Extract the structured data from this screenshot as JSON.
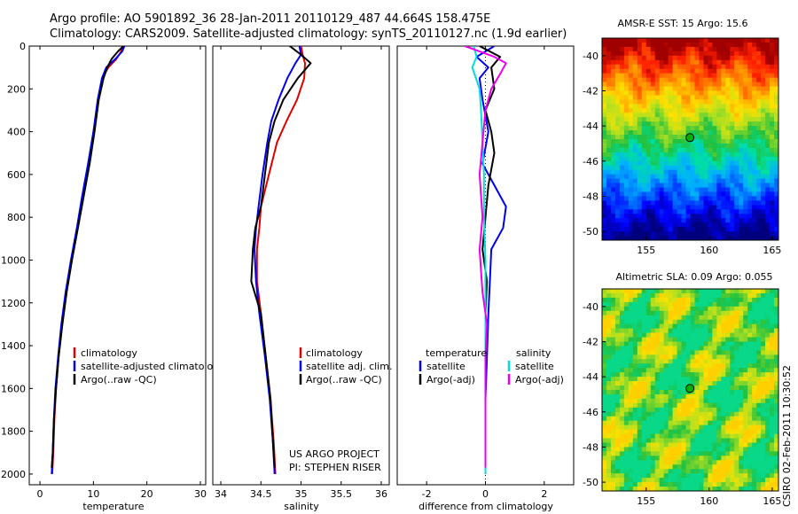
{
  "figure": {
    "title_line1": "Argo profile: AO 5901892_36 28-Jan-2011 20110129_487 44.664S 158.475E",
    "title_line2": "Climatology: CARS2009. Satellite-adjusted climatology: synTS_20110127.nc (1.9d earlier)",
    "credit": "CSIRO 02-Feb-2011 10:30:52",
    "project_line1": "US ARGO PROJECT",
    "project_line2": "PI: STEPHEN RISER"
  },
  "colors": {
    "climatology": "#dd0000",
    "satellite": "#0000ee",
    "argo": "#000000",
    "satellite_salinity": "#00dddd",
    "argo_salinity": "#ee00ee",
    "marker": "#00b000"
  },
  "chart_data": [
    {
      "type": "line",
      "id": "temperature",
      "xlabel": "temperature",
      "ylabel": "",
      "xlim": [
        -2,
        31
      ],
      "ylim": [
        2050,
        0
      ],
      "xticks": [
        "0",
        "10",
        "20",
        "30"
      ],
      "yticks": [
        "0",
        "200",
        "400",
        "600",
        "800",
        "1000",
        "1200",
        "1400",
        "1600",
        "1800",
        "2000"
      ],
      "legend": [
        "climatology",
        "satellite-adjusted climatolog",
        "Argo(..raw -QC)"
      ],
      "series": [
        {
          "name": "climatology",
          "color": "#dd0000",
          "x": [
            15.4,
            15.2,
            14.3,
            12.8,
            11.6,
            10.9,
            10.0,
            9.1,
            8.1,
            7.0,
            5.9,
            4.9,
            4.1,
            3.5,
            3.0,
            2.7,
            2.5,
            2.3
          ],
          "y": [
            0,
            25,
            60,
            100,
            150,
            250,
            400,
            550,
            700,
            850,
            1000,
            1150,
            1300,
            1450,
            1600,
            1750,
            1900,
            2000
          ]
        },
        {
          "name": "satellite-adjusted climatology",
          "color": "#0000ee",
          "x": [
            15.8,
            15.4,
            14.1,
            12.4,
            11.6,
            10.8,
            10.0,
            9.0,
            7.9,
            6.9,
            5.8,
            4.8,
            4.0,
            3.4,
            2.9,
            2.6,
            2.4,
            2.2
          ],
          "y": [
            0,
            25,
            60,
            100,
            150,
            250,
            400,
            550,
            700,
            850,
            1000,
            1150,
            1300,
            1450,
            1600,
            1750,
            1900,
            2000
          ]
        },
        {
          "name": "Argo(..raw -QC)",
          "color": "#000000",
          "x": [
            15.6,
            14.6,
            13.4,
            12.6,
            11.9,
            11.0,
            10.2,
            9.3,
            8.2,
            7.1,
            6.0,
            5.0,
            4.2,
            3.5,
            3.0,
            2.6,
            2.4,
            2.2
          ],
          "y": [
            0,
            25,
            60,
            100,
            150,
            250,
            400,
            550,
            700,
            850,
            1000,
            1150,
            1300,
            1450,
            1600,
            1750,
            1900,
            1970
          ]
        }
      ]
    },
    {
      "type": "line",
      "id": "salinity",
      "xlabel": "salinity",
      "ylabel": "",
      "xlim": [
        33.9,
        36.1
      ],
      "ylim": [
        2050,
        0
      ],
      "xticks": [
        "34",
        "34.5",
        "35",
        "35.5",
        "36"
      ],
      "yticks": [],
      "legend": [
        "climatology",
        "satellite adj. clim.",
        "Argo(..raw -QC)"
      ],
      "series": [
        {
          "name": "climatology",
          "color": "#dd0000",
          "x": [
            35.0,
            35.02,
            35.05,
            35.04,
            34.95,
            34.82,
            34.7,
            34.6,
            34.5,
            34.48,
            34.45,
            34.45,
            34.5,
            34.56,
            34.62,
            34.66,
            34.68
          ],
          "y": [
            0,
            40,
            80,
            150,
            250,
            350,
            450,
            600,
            750,
            850,
            950,
            1100,
            1250,
            1450,
            1650,
            1850,
            2000
          ]
        },
        {
          "name": "satellite adj. clim.",
          "color": "#0000ee",
          "x": [
            34.98,
            35.0,
            34.93,
            34.83,
            34.72,
            34.63,
            34.58,
            34.52,
            34.47,
            34.44,
            34.42,
            34.44,
            34.48,
            34.55,
            34.61,
            34.65,
            34.67
          ],
          "y": [
            0,
            40,
            80,
            150,
            250,
            350,
            450,
            600,
            750,
            850,
            950,
            1100,
            1250,
            1450,
            1650,
            1850,
            2000
          ]
        },
        {
          "name": "Argo(..raw -QC)",
          "color": "#000000",
          "x": [
            34.86,
            35.0,
            35.12,
            34.96,
            34.78,
            34.67,
            34.6,
            34.55,
            34.5,
            34.43,
            34.4,
            34.38,
            34.5,
            34.56,
            34.62,
            34.65,
            34.67
          ],
          "y": [
            0,
            40,
            80,
            150,
            250,
            350,
            450,
            600,
            750,
            850,
            950,
            1100,
            1250,
            1450,
            1650,
            1850,
            1970
          ]
        }
      ]
    },
    {
      "type": "line",
      "id": "difference",
      "xlabel": "difference from climatology",
      "ylabel": "",
      "xlim": [
        -3,
        3
      ],
      "ylim": [
        2050,
        0
      ],
      "xticks": [
        "-2",
        "0",
        "2"
      ],
      "yticks": [],
      "legend_groups": [
        {
          "heading": "temperature",
          "items": [
            "satellite",
            "Argo(-adj)"
          ]
        },
        {
          "heading": "salinity",
          "items": [
            "satellite",
            "Argo(-adj)"
          ]
        }
      ],
      "series": [
        {
          "name": "temperature satellite",
          "color": "#0000ee",
          "x": [
            0.3,
            -0.3,
            0.1,
            -0.2,
            -0.1,
            0.1,
            -0.1,
            0.3,
            0.7,
            0.6,
            0.2,
            0.15,
            0.1,
            0.05,
            0.0,
            0.0,
            0.0
          ],
          "y": [
            0,
            50,
            100,
            150,
            250,
            400,
            550,
            650,
            750,
            850,
            950,
            1100,
            1250,
            1450,
            1650,
            1850,
            2000
          ]
        },
        {
          "name": "temperature Argo(-adj)",
          "color": "#000000",
          "x": [
            -0.2,
            0.5,
            0.2,
            0.3,
            0.0,
            0.2,
            0.3,
            0.1,
            0.0,
            -0.1,
            0.05,
            0.0,
            0.0,
            0.0,
            0.0,
            0.0
          ],
          "y": [
            0,
            50,
            100,
            200,
            300,
            400,
            500,
            650,
            800,
            950,
            1100,
            1250,
            1450,
            1650,
            1850,
            1970
          ]
        },
        {
          "name": "salinity satellite",
          "color": "#00dddd",
          "x": [
            -0.4,
            -0.3,
            -0.45,
            -0.2,
            -0.15,
            -0.1,
            -0.05,
            -0.05,
            0.0,
            0.0,
            0.0,
            0.0,
            0.0,
            0.0
          ],
          "y": [
            0,
            50,
            100,
            200,
            300,
            450,
            600,
            800,
            1000,
            1200,
            1400,
            1600,
            1800,
            2000
          ]
        },
        {
          "name": "salinity Argo(-adj)",
          "color": "#ee00ee",
          "x": [
            -0.7,
            0.3,
            0.7,
            0.5,
            0.2,
            0.0,
            -0.1,
            -0.2,
            -0.1,
            -0.2,
            -0.15,
            -0.1,
            0.05,
            0.0,
            0.0,
            0.0,
            0.0
          ],
          "y": [
            0,
            50,
            80,
            130,
            200,
            300,
            450,
            600,
            800,
            950,
            1050,
            1150,
            1300,
            1450,
            1650,
            1850,
            1970
          ]
        }
      ]
    }
  ],
  "maps": [
    {
      "id": "sst",
      "title": "AMSR-E SST: 15 Argo: 15.6",
      "xticks": [
        "155",
        "160",
        "165"
      ],
      "yticks": [
        "-40",
        "-42",
        "-44",
        "-46",
        "-48",
        "-50"
      ],
      "lon_range": [
        151.5,
        165.5
      ],
      "lat_range": [
        -50.5,
        -39
      ],
      "marker": {
        "lon": 158.475,
        "lat": -44.664
      }
    },
    {
      "id": "sla",
      "title": "Altimetric SLA: 0.09 Argo: 0.055",
      "xticks": [
        "155",
        "160",
        "165"
      ],
      "yticks": [
        "-40",
        "-42",
        "-44",
        "-46",
        "-48",
        "-50"
      ],
      "lon_range": [
        151.5,
        165.5
      ],
      "lat_range": [
        -50.5,
        -39
      ],
      "marker": {
        "lon": 158.475,
        "lat": -44.664
      }
    }
  ]
}
